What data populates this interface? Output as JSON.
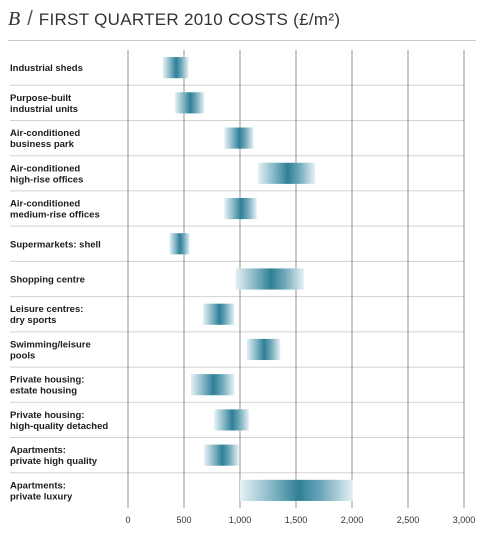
{
  "title": {
    "letter": "B",
    "separator": "/",
    "text": "FIRST QUARTER 2010 COSTS (£/m²)"
  },
  "colors": {
    "bar_dark": "#2f7f96",
    "bar_light": "#e6f1f5",
    "grid": "#7a7a7a",
    "row_rule": "#d2d2d2"
  },
  "chart_data": {
    "type": "bar",
    "orientation": "horizontal-range",
    "title": "FIRST QUARTER 2010 COSTS (£/m²)",
    "xlabel": "",
    "ylabel": "",
    "xlim": [
      0,
      3000
    ],
    "grid": true,
    "x_ticks": [
      0,
      500,
      1000,
      1500,
      2000,
      2500,
      3000
    ],
    "x_tick_labels": [
      "0",
      "500",
      "1,000",
      "1,500",
      "2,000",
      "2,500",
      "3,000"
    ],
    "categories": [
      [
        "Industrial sheds"
      ],
      [
        "Purpose-built",
        "industrial units"
      ],
      [
        "Air-conditioned",
        "business park"
      ],
      [
        "Air-conditioned",
        "high-rise offices"
      ],
      [
        "Air-conditioned",
        "medium-rise offices"
      ],
      [
        "Supermarkets: shell"
      ],
      [
        "Shopping centre"
      ],
      [
        "Leisure centres:",
        "dry sports"
      ],
      [
        "Swimming/leisure",
        "pools"
      ],
      [
        "Private housing:",
        "estate housing"
      ],
      [
        "Private housing:",
        "high-quality detached"
      ],
      [
        "Apartments:",
        "private high quality"
      ],
      [
        "Apartments:",
        "private luxury"
      ]
    ],
    "ranges": [
      [
        310,
        540
      ],
      [
        420,
        680
      ],
      [
        860,
        1120
      ],
      [
        1160,
        1670
      ],
      [
        860,
        1150
      ],
      [
        370,
        550
      ],
      [
        960,
        1570
      ],
      [
        670,
        950
      ],
      [
        1060,
        1360
      ],
      [
        560,
        950
      ],
      [
        770,
        1080
      ],
      [
        680,
        990
      ],
      [
        1000,
        2010
      ]
    ]
  }
}
